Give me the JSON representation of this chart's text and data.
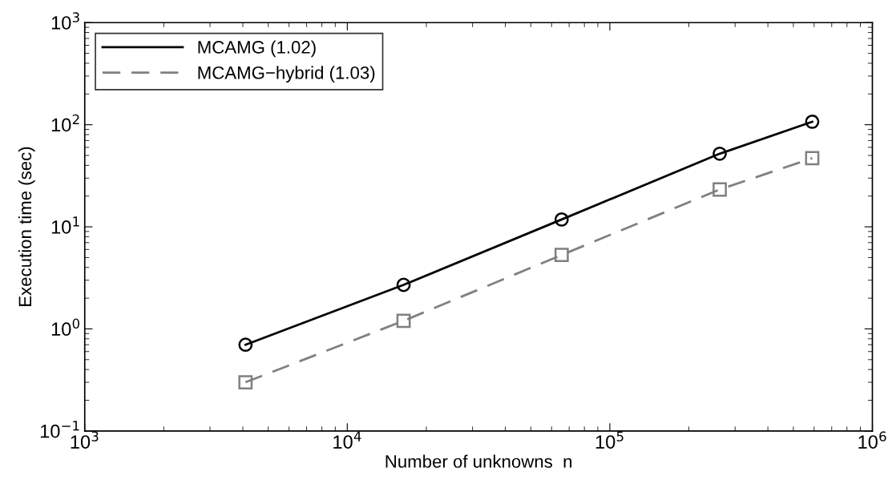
{
  "chart_data": {
    "type": "line",
    "xlabel": "Number of unknowns  n",
    "ylabel": "Execution time (sec)",
    "log": "xy",
    "x": [
      4096,
      16384,
      65536,
      262144,
      590000
    ],
    "series": [
      {
        "name": "MCAMG (1.02)",
        "color": "#000000",
        "marker": "circle",
        "line_style": "solid",
        "values": [
          0.7,
          2.7,
          11.8,
          52,
          107
        ]
      },
      {
        "name": "MCAMG−hybrid (1.03)",
        "color": "#808080",
        "marker": "square",
        "line_style": "dashed",
        "values": [
          0.3,
          1.2,
          5.3,
          23.2,
          47
        ]
      }
    ],
    "xlim": [
      1000,
      1000000
    ],
    "ylim": [
      0.1,
      1000
    ],
    "xticks": [
      {
        "value": 1000,
        "label": "10$^{3}$"
      },
      {
        "value": 10000,
        "label": "10$^{4}$"
      },
      {
        "value": 100000,
        "label": "10$^{5}$"
      },
      {
        "value": 1000000,
        "label": "10$^{6}$"
      }
    ],
    "yticks": [
      {
        "value": 0.1,
        "label": "10$^{−1}$"
      },
      {
        "value": 1,
        "label": "10$^{0}$"
      },
      {
        "value": 10,
        "label": "10$^{1}$"
      },
      {
        "value": 100,
        "label": "10$^{2}$"
      },
      {
        "value": 1000,
        "label": "10$^{3}$"
      }
    ],
    "grid": false,
    "legend": "top left"
  }
}
